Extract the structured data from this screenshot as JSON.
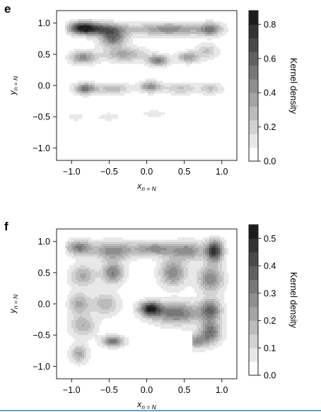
{
  "chart_data": [
    {
      "panel": "e",
      "type": "heatmap",
      "xlabel": "x",
      "xlabel_sub": "n = N",
      "ylabel": "y",
      "ylabel_sub": "n = N",
      "xlim": [
        -1.2,
        1.2
      ],
      "ylim": [
        -1.2,
        1.2
      ],
      "xticks": [
        -1.0,
        -0.5,
        0.0,
        0.5,
        1.0
      ],
      "yticks": [
        -1.0,
        -0.5,
        0.0,
        0.5,
        1.0
      ],
      "xtick_labels": [
        "−1.0",
        "−0.5",
        "0.0",
        "0.5",
        "1.0"
      ],
      "ytick_labels": [
        "1.0",
        "0.5",
        "0.0",
        "−0.5",
        "−1.0"
      ],
      "colorbar": {
        "label": "Kernel density",
        "range": [
          0.0,
          0.88
        ],
        "ticks": [
          0.0,
          0.2,
          0.4,
          0.6,
          0.8
        ],
        "tick_labels": [
          "0.0",
          "0.2",
          "0.4",
          "0.6",
          "0.8"
        ],
        "levels": 11
      },
      "density_components": [
        {
          "x": -0.85,
          "y": 0.92,
          "w": 0.85,
          "sx": 0.13,
          "sy": 0.07
        },
        {
          "x": -0.55,
          "y": 0.9,
          "w": 0.55,
          "sx": 0.18,
          "sy": 0.07
        },
        {
          "x": -0.45,
          "y": 0.75,
          "w": 0.55,
          "sx": 0.12,
          "sy": 0.09
        },
        {
          "x": 0.3,
          "y": 0.9,
          "w": 0.45,
          "sx": 0.35,
          "sy": 0.07
        },
        {
          "x": 0.85,
          "y": 0.9,
          "w": 0.45,
          "sx": 0.1,
          "sy": 0.07
        },
        {
          "x": -0.85,
          "y": 0.45,
          "w": 0.45,
          "sx": 0.12,
          "sy": 0.07
        },
        {
          "x": -0.3,
          "y": 0.5,
          "w": 0.35,
          "sx": 0.2,
          "sy": 0.08
        },
        {
          "x": 0.15,
          "y": 0.4,
          "w": 0.5,
          "sx": 0.1,
          "sy": 0.06
        },
        {
          "x": 0.55,
          "y": 0.45,
          "w": 0.4,
          "sx": 0.1,
          "sy": 0.06
        },
        {
          "x": 0.8,
          "y": 0.55,
          "w": 0.25,
          "sx": 0.1,
          "sy": 0.08
        },
        {
          "x": -0.82,
          "y": -0.05,
          "w": 0.55,
          "sx": 0.1,
          "sy": 0.06
        },
        {
          "x": -0.45,
          "y": -0.05,
          "w": 0.3,
          "sx": 0.15,
          "sy": 0.06
        },
        {
          "x": 0.05,
          "y": -0.02,
          "w": 0.45,
          "sx": 0.1,
          "sy": 0.06
        },
        {
          "x": 0.45,
          "y": -0.05,
          "w": 0.25,
          "sx": 0.15,
          "sy": 0.06
        },
        {
          "x": 0.85,
          "y": -0.05,
          "w": 0.25,
          "sx": 0.1,
          "sy": 0.06
        },
        {
          "x": -0.95,
          "y": -0.5,
          "w": 0.1,
          "sx": 0.08,
          "sy": 0.05
        },
        {
          "x": -0.5,
          "y": -0.5,
          "w": 0.1,
          "sx": 0.12,
          "sy": 0.05
        },
        {
          "x": 0.1,
          "y": -0.45,
          "w": 0.08,
          "sx": 0.18,
          "sy": 0.05
        }
      ]
    },
    {
      "panel": "f",
      "type": "heatmap",
      "xlabel": "x",
      "xlabel_sub": "n = N",
      "ylabel": "y",
      "ylabel_sub": "n = N",
      "xlim": [
        -1.2,
        1.2
      ],
      "ylim": [
        -1.2,
        1.2
      ],
      "xticks": [
        -1.0,
        -0.5,
        0.0,
        0.5,
        1.0
      ],
      "yticks": [
        -1.0,
        -0.5,
        0.0,
        0.5,
        1.0
      ],
      "xtick_labels": [
        "−1.0",
        "−0.5",
        "0.0",
        "0.5",
        "1.0"
      ],
      "ytick_labels": [
        "1.0",
        "0.5",
        "0.0",
        "−0.5",
        "−1.0"
      ],
      "colorbar": {
        "label": "Kernel density",
        "range": [
          0.0,
          0.55
        ],
        "ticks": [
          0.0,
          0.1,
          0.2,
          0.3,
          0.4,
          0.5
        ],
        "tick_labels": [
          "0.0",
          "0.1",
          "0.2",
          "0.3",
          "0.4",
          "0.5"
        ],
        "levels": 11
      },
      "density_components": [
        {
          "x": -0.9,
          "y": 0.9,
          "w": 0.32,
          "sx": 0.12,
          "sy": 0.08
        },
        {
          "x": -0.45,
          "y": 0.85,
          "w": 0.3,
          "sx": 0.18,
          "sy": 0.1
        },
        {
          "x": 0.1,
          "y": 0.88,
          "w": 0.28,
          "sx": 0.2,
          "sy": 0.08
        },
        {
          "x": 0.55,
          "y": 0.85,
          "w": 0.28,
          "sx": 0.15,
          "sy": 0.1
        },
        {
          "x": 0.9,
          "y": 0.85,
          "w": 0.5,
          "sx": 0.08,
          "sy": 0.12
        },
        {
          "x": -0.85,
          "y": 0.45,
          "w": 0.22,
          "sx": 0.12,
          "sy": 0.12
        },
        {
          "x": -0.45,
          "y": 0.5,
          "w": 0.32,
          "sx": 0.1,
          "sy": 0.12
        },
        {
          "x": 0.35,
          "y": 0.5,
          "w": 0.3,
          "sx": 0.12,
          "sy": 0.15
        },
        {
          "x": 0.85,
          "y": 0.4,
          "w": 0.3,
          "sx": 0.12,
          "sy": 0.15
        },
        {
          "x": -0.9,
          "y": 0.0,
          "w": 0.22,
          "sx": 0.1,
          "sy": 0.12
        },
        {
          "x": -0.55,
          "y": 0.0,
          "w": 0.2,
          "sx": 0.12,
          "sy": 0.12
        },
        {
          "x": 0.05,
          "y": -0.08,
          "w": 0.5,
          "sx": 0.1,
          "sy": 0.08
        },
        {
          "x": 0.4,
          "y": -0.15,
          "w": 0.35,
          "sx": 0.22,
          "sy": 0.12
        },
        {
          "x": 0.85,
          "y": -0.1,
          "w": 0.35,
          "sx": 0.1,
          "sy": 0.12
        },
        {
          "x": 0.85,
          "y": -0.45,
          "w": 0.35,
          "sx": 0.1,
          "sy": 0.12
        },
        {
          "x": -0.85,
          "y": -0.35,
          "w": 0.2,
          "sx": 0.12,
          "sy": 0.12
        },
        {
          "x": -0.9,
          "y": -0.8,
          "w": 0.22,
          "sx": 0.08,
          "sy": 0.1
        },
        {
          "x": -0.45,
          "y": -0.6,
          "w": 0.35,
          "sx": 0.1,
          "sy": 0.06
        },
        {
          "x": 0.65,
          "y": -0.6,
          "w": 0.25,
          "sx": 0.12,
          "sy": 0.08
        }
      ],
      "white_region": {
        "x_min": -0.05,
        "x_max": 0.6,
        "y_min": -1.2,
        "y_max": -0.42
      }
    }
  ]
}
